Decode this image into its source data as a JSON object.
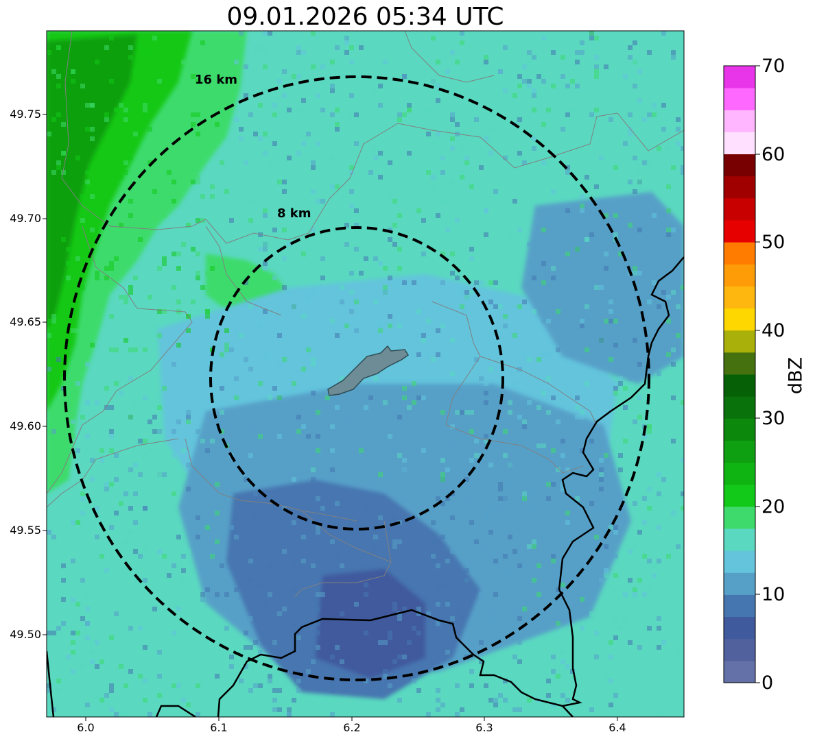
{
  "title": "09.01.2026 05:34 UTC",
  "axes": {
    "x_ticks": [
      "6.0",
      "6.1",
      "6.2",
      "6.3",
      "6.4"
    ],
    "y_ticks": [
      "49.75",
      "49.70",
      "49.65",
      "49.60",
      "49.55",
      "49.50"
    ]
  },
  "rings": [
    {
      "label": "16 km",
      "radius_km": 16
    },
    {
      "label": "8 km",
      "radius_km": 8
    }
  ],
  "colorbar": {
    "label": "dBZ",
    "ticks": [
      "70",
      "60",
      "50",
      "40",
      "30",
      "20",
      "10",
      "0"
    ],
    "min": 0,
    "max": 70,
    "step": 2.5,
    "colors": [
      "#6470a8",
      "#51619e",
      "#3f5a9d",
      "#4676b0",
      "#56a0c8",
      "#63c4dc",
      "#5ad8c0",
      "#3edb6c",
      "#12c818",
      "#10b412",
      "#0ea010",
      "#0c880c",
      "#0a720a",
      "#066006",
      "#45720e",
      "#aab00a",
      "#fed700",
      "#fdb70e",
      "#fd9c06",
      "#ff7c00",
      "#e60000",
      "#c80000",
      "#a00000",
      "#780000",
      "#ffe0ff",
      "#ffb6ff",
      "#ff68ff",
      "#e935e9"
    ]
  },
  "map_colors": {
    "bg": "#5ad8c0",
    "light_blue": "#63c4dc",
    "mid_blue": "#56a0c8",
    "dark_blue": "#4676b0",
    "deep_blue": "#3f5a9d",
    "green_light": "#3edb6c",
    "green_mid": "#12c818",
    "green_dark": "#0ea010",
    "city_fill": "#6e8c96"
  }
}
